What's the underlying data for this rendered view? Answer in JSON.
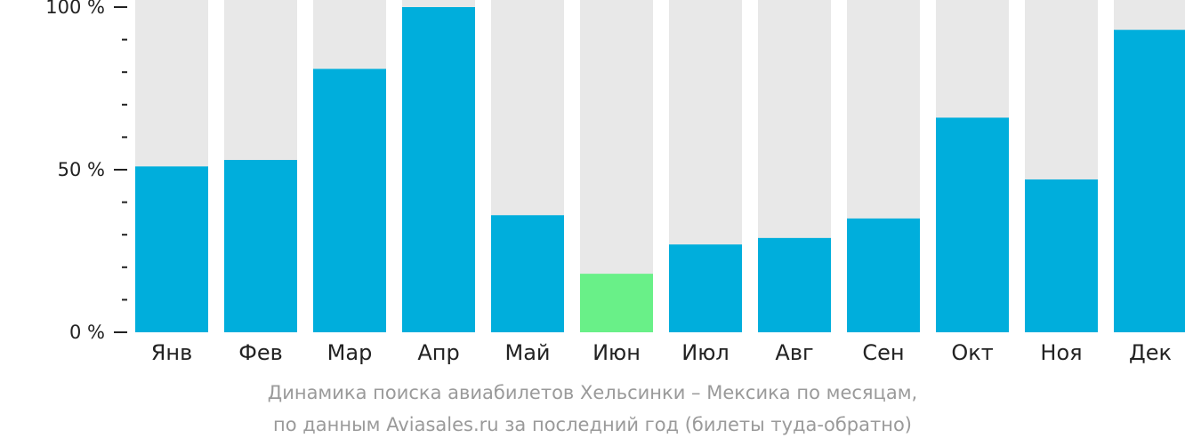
{
  "chart_data": {
    "type": "bar",
    "categories": [
      "Янв",
      "Фев",
      "Мар",
      "Апр",
      "Май",
      "Июн",
      "Июл",
      "Авг",
      "Сен",
      "Окт",
      "Ноя",
      "Дек"
    ],
    "values": [
      51,
      53,
      81,
      100,
      36,
      18,
      27,
      29,
      35,
      66,
      47,
      93
    ],
    "ylim": [
      0,
      100
    ],
    "yticks": [
      {
        "value": 0,
        "label": "0 %"
      },
      {
        "value": 50,
        "label": "50 %"
      },
      {
        "value": 100,
        "label": "100 %"
      }
    ],
    "minor_tick_step": 10,
    "highlight_category": "Июн",
    "colors": {
      "bar": "#00AEDC",
      "highlight": "#69F088",
      "background_bar": "#E8E8E8",
      "axis": "#222222"
    },
    "grid": false,
    "legend": "none"
  },
  "caption": {
    "line1": "Динамика поиска авиабилетов Хельсинки – Мексика по месяцам,",
    "line2": "по данным Aviasales.ru за последний год (билеты туда-обратно)"
  }
}
